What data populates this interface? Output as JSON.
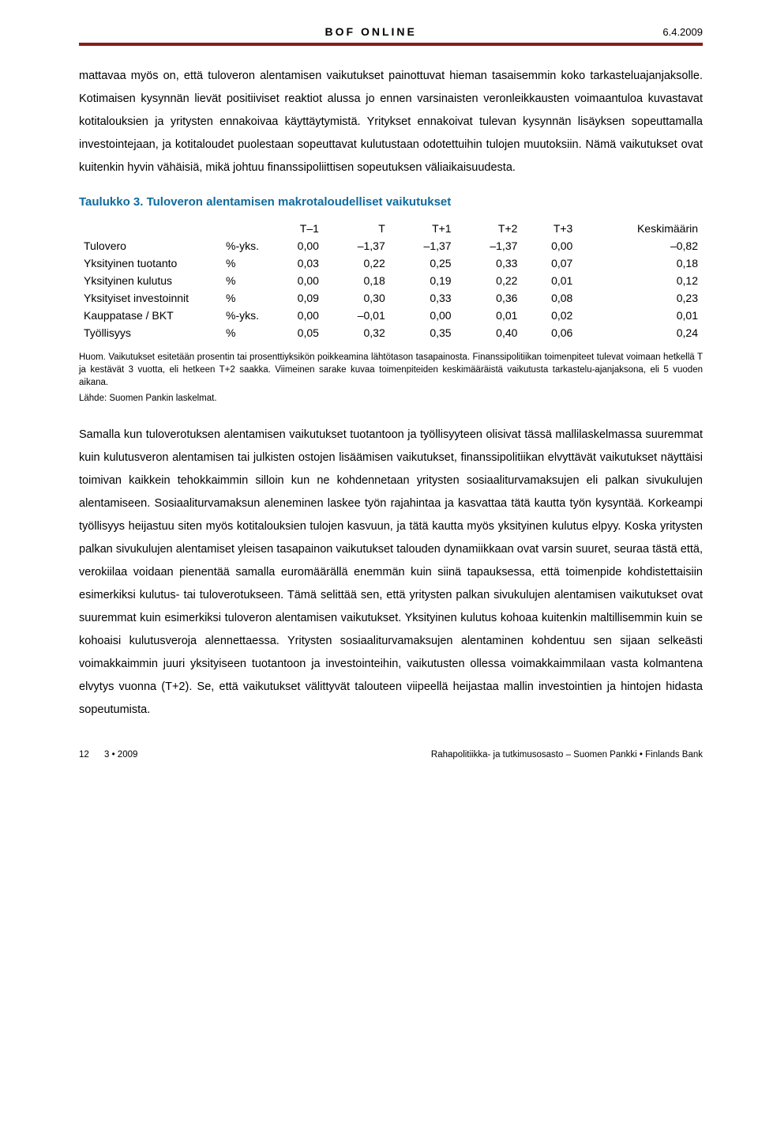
{
  "header": {
    "title": "BOF ONLINE",
    "date": "6.4.2009",
    "rule_color": "#8a1d1d"
  },
  "para1": "mattavaa myös on, että tuloveron alentamisen vaikutukset painottuvat hieman tasaisemmin koko tarkasteluajanjaksolle. Kotimaisen kysynnän lievät positiiviset reaktiot alussa jo ennen varsinaisten veronleikkausten voimaantuloa kuvastavat kotitalouksien ja yritysten ennakoivaa käyttäytymistä. Yritykset ennakoivat tulevan kysynnän lisäyksen sopeuttamalla investointe­jaan, ja kotitaloudet puolestaan sopeuttavat kulutustaan odotettuihin tulojen muutoksiin. Nä­mä vaikutukset ovat kuitenkin hyvin vähäisiä, mikä johtuu finanssipoliittisen sopeutuksen väliaikaisuudesta.",
  "table": {
    "title": "Taulukko 3. Tuloveron alentamisen makrotaloudelliset vaikutukset",
    "title_color": "#0f6b9e",
    "columns": [
      "",
      "",
      "T–1",
      "T",
      "T+1",
      "T+2",
      "T+3",
      "Keskimäärin"
    ],
    "rows": [
      [
        "Tulovero",
        "%-yks.",
        "0,00",
        "–1,37",
        "–1,37",
        "–1,37",
        "0,00",
        "–0,82"
      ],
      [
        "Yksityinen tuotanto",
        "%",
        "0,03",
        "0,22",
        "0,25",
        "0,33",
        "0,07",
        "0,18"
      ],
      [
        "Yksityinen kulutus",
        "%",
        "0,00",
        "0,18",
        "0,19",
        "0,22",
        "0,01",
        "0,12"
      ],
      [
        "Yksityiset investoinnit",
        "%",
        "0,09",
        "0,30",
        "0,33",
        "0,36",
        "0,08",
        "0,23"
      ],
      [
        "Kauppatase / BKT",
        "%-yks.",
        "0,00",
        "–0,01",
        "0,00",
        "0,01",
        "0,02",
        "0,01"
      ],
      [
        "Työllisyys",
        "%",
        "0,05",
        "0,32",
        "0,35",
        "0,40",
        "0,06",
        "0,24"
      ]
    ],
    "note": "Huom. Vaikutukset esitetään prosentin tai prosenttiyksikön poikkeamina lähtötason tasapainosta. Finanssipolitiikan toimenpiteet tulevat voimaan hetkellä T ja kestävät 3 vuotta, eli hetkeen T+2 saakka. Viimeinen sarake kuvaa toimenpiteiden keskimääräistä vaikutusta tarkastelu-ajanjaksona, eli 5 vuoden aikana.",
    "source": "Lähde: Suomen Pankin laskelmat."
  },
  "para2": "Samalla kun tuloverotuksen alentamisen vaikutukset tuotantoon ja työllisyyteen olisivat tässä mallilaskelmassa suuremmat kuin kulutusveron alentamisen tai julkisten ostojen lisäämisen vaikutukset, finanssipolitiikan elvyttävät vaikutukset näyttäisi toimivan kaikkein tehokkaimmin silloin kun ne kohdennetaan yritysten sosiaaliturvamaksujen eli palkan sivukulujen alentami­seen. Sosiaaliturvamaksun aleneminen laskee työn rajahintaa ja kasvattaa tätä kautta työn kysyntää. Korkeampi työllisyys heijastuu siten myös kotitalouksien tulojen kasvuun, ja tätä kautta myös yksityinen kulutus elpyy. Koska yritysten palkan sivukulujen alentamiset yleisen tasapainon vaikutukset talouden dynamiikkaan ovat varsin suuret, seuraa tästä että, verokii­laa voidaan pienentää samalla euromäärällä enemmän kuin siinä tapauksessa, että toimen­pide kohdistettaisiin esimerkiksi kulutus- tai tuloverotukseen. Tämä selittää sen, että yritysten palkan sivukulujen alentamisen vaikutukset ovat suuremmat kuin esimerkiksi tuloveron alen­tamisen vaikutukset. Yksityinen kulutus kohoaa kuitenkin maltillisemmin kuin se kohoaisi kulutusveroja alennettaessa. Yritysten sosiaaliturvamaksujen alentaminen kohdentuu sen sijaan selkeästi voimakkaimmin juuri yksityiseen tuotantoon ja investointeihin, vaikutusten ollessa voimakkaimmilaan vasta kolmantena elvytys vuonna (T+2). Se, että vaikutukset välit­tyvät talouteen viipeellä heijastaa mallin investointien ja hintojen hidasta sopeutumista.",
  "footer": {
    "page": "12",
    "issue": "3 • 2009",
    "right": "Rahapolitiikka- ja tutkimusosasto – Suomen Pankki • Finlands Bank"
  }
}
